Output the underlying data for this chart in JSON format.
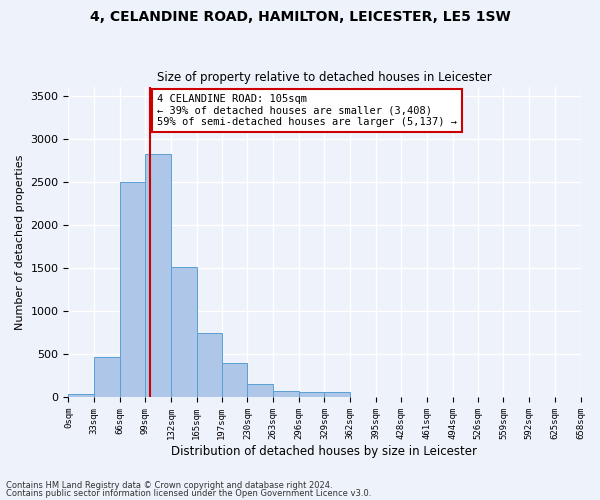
{
  "title_line1": "4, CELANDINE ROAD, HAMILTON, LEICESTER, LE5 1SW",
  "title_line2": "Size of property relative to detached houses in Leicester",
  "xlabel": "Distribution of detached houses by size in Leicester",
  "ylabel": "Number of detached properties",
  "bar_values": [
    30,
    460,
    2500,
    2820,
    1510,
    740,
    390,
    145,
    70,
    55,
    60,
    5,
    0,
    0,
    0,
    0,
    0,
    0,
    0,
    0
  ],
  "bin_edges": [
    0,
    33,
    66,
    99,
    132,
    165,
    197,
    230,
    263,
    296,
    329,
    362,
    395,
    428,
    461,
    494,
    526,
    559,
    592,
    625,
    658
  ],
  "tick_labels": [
    "0sqm",
    "33sqm",
    "66sqm",
    "99sqm",
    "132sqm",
    "165sqm",
    "197sqm",
    "230sqm",
    "263sqm",
    "296sqm",
    "329sqm",
    "362sqm",
    "395sqm",
    "428sqm",
    "461sqm",
    "494sqm",
    "526sqm",
    "559sqm",
    "592sqm",
    "625sqm",
    "658sqm"
  ],
  "bar_color": "#aec6e8",
  "bar_edge_color": "#5a9fd4",
  "property_size": 105,
  "property_label": "4 CELANDINE ROAD: 105sqm",
  "pct_smaller_label": "← 39% of detached houses are smaller (3,408)",
  "pct_larger_label": "59% of semi-detached houses are larger (5,137) →",
  "vline_color": "#cc0000",
  "annotation_box_color": "#cc0000",
  "ylim": [
    0,
    3600
  ],
  "yticks": [
    0,
    500,
    1000,
    1500,
    2000,
    2500,
    3000,
    3500
  ],
  "background_color": "#eef2fb",
  "grid_color": "#ffffff",
  "footer_line1": "Contains HM Land Registry data © Crown copyright and database right 2024.",
  "footer_line2": "Contains public sector information licensed under the Open Government Licence v3.0."
}
